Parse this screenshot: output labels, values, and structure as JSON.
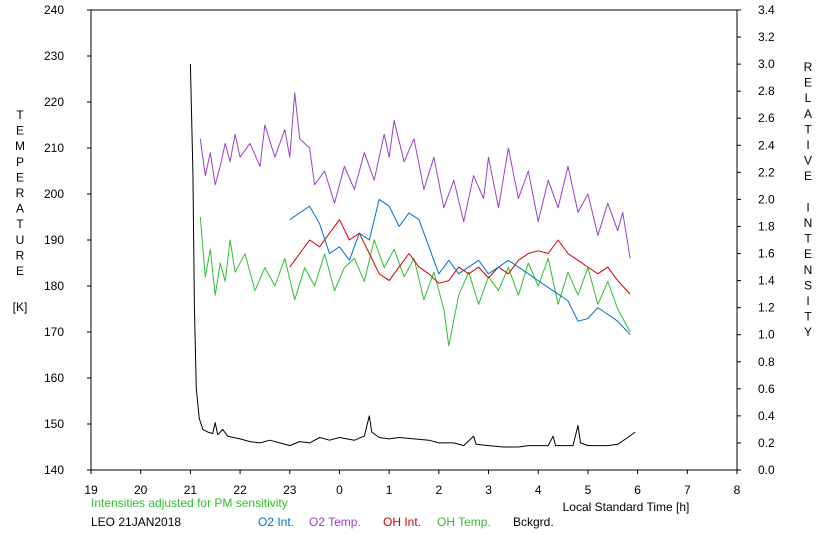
{
  "chart_data": {
    "type": "line",
    "x_range": [
      19,
      8
    ],
    "x_ticks": [
      "19",
      "20",
      "21",
      "22",
      "23",
      "0",
      "1",
      "2",
      "3",
      "4",
      "5",
      "6",
      "7",
      "8"
    ],
    "xlabel": "Local Standard Time [h]",
    "y_left": {
      "range": [
        140,
        240
      ],
      "ticks": [
        "140",
        "150",
        "160",
        "170",
        "180",
        "190",
        "200",
        "210",
        "220",
        "230",
        "240"
      ],
      "label_letters": [
        "T",
        "E",
        "M",
        "P",
        "E",
        "R",
        "A",
        "T",
        "U",
        "R",
        "E"
      ],
      "unit": "[K]"
    },
    "y_right": {
      "range": [
        0.0,
        3.4
      ],
      "ticks": [
        "0.0",
        "0.2",
        "0.4",
        "0.6",
        "0.8",
        "1.0",
        "1.2",
        "1.4",
        "1.6",
        "1.8",
        "2.0",
        "2.2",
        "2.4",
        "2.6",
        "2.8",
        "3.0",
        "3.2",
        "3.4"
      ],
      "label_letters": [
        "R",
        "E",
        "L",
        "A",
        "T",
        "I",
        "V",
        "E",
        "",
        "I",
        "N",
        "T",
        "E",
        "N",
        "S",
        "I",
        "T",
        "Y"
      ]
    },
    "note": "Intensities adjusted for PM sensitivity",
    "station_date": "LEO 21JAN2018",
    "grid": false,
    "series": [
      {
        "name": "O2 Int.",
        "color": "#0070d0",
        "axis": "right",
        "points": [
          [
            23.0,
            1.85
          ],
          [
            23.2,
            1.9
          ],
          [
            23.4,
            1.95
          ],
          [
            23.6,
            1.82
          ],
          [
            23.8,
            1.6
          ],
          [
            24.0,
            1.65
          ],
          [
            24.2,
            1.55
          ],
          [
            24.4,
            1.75
          ],
          [
            24.6,
            1.7
          ],
          [
            24.8,
            2.0
          ],
          [
            25.0,
            1.95
          ],
          [
            25.2,
            1.8
          ],
          [
            25.4,
            1.9
          ],
          [
            25.6,
            1.85
          ],
          [
            25.8,
            1.65
          ],
          [
            26.0,
            1.45
          ],
          [
            26.2,
            1.55
          ],
          [
            26.4,
            1.45
          ],
          [
            26.6,
            1.5
          ],
          [
            26.8,
            1.55
          ],
          [
            27.0,
            1.45
          ],
          [
            27.2,
            1.5
          ],
          [
            27.4,
            1.55
          ],
          [
            27.6,
            1.5
          ],
          [
            27.8,
            1.45
          ],
          [
            28.0,
            1.4
          ],
          [
            28.2,
            1.35
          ],
          [
            28.4,
            1.3
          ],
          [
            28.6,
            1.25
          ],
          [
            28.8,
            1.1
          ],
          [
            29.0,
            1.12
          ],
          [
            29.2,
            1.2
          ],
          [
            29.4,
            1.15
          ],
          [
            29.6,
            1.1
          ],
          [
            29.85,
            1.0
          ]
        ]
      },
      {
        "name": "O2 Temp.",
        "color": "#9a40c8",
        "axis": "left",
        "points": [
          [
            21.2,
            212
          ],
          [
            21.3,
            204
          ],
          [
            21.4,
            209
          ],
          [
            21.5,
            202
          ],
          [
            21.6,
            206
          ],
          [
            21.7,
            211
          ],
          [
            21.8,
            207
          ],
          [
            21.9,
            213
          ],
          [
            22.0,
            208
          ],
          [
            22.2,
            211
          ],
          [
            22.4,
            206
          ],
          [
            22.5,
            215
          ],
          [
            22.7,
            208
          ],
          [
            22.9,
            214
          ],
          [
            23.0,
            208
          ],
          [
            23.1,
            222
          ],
          [
            23.2,
            212
          ],
          [
            23.4,
            210
          ],
          [
            23.5,
            202
          ],
          [
            23.7,
            205
          ],
          [
            23.9,
            198
          ],
          [
            24.1,
            206
          ],
          [
            24.3,
            201
          ],
          [
            24.5,
            209
          ],
          [
            24.7,
            203
          ],
          [
            24.9,
            213
          ],
          [
            25.0,
            208
          ],
          [
            25.1,
            216
          ],
          [
            25.3,
            207
          ],
          [
            25.5,
            212
          ],
          [
            25.7,
            201
          ],
          [
            25.9,
            208
          ],
          [
            26.1,
            197
          ],
          [
            26.3,
            203
          ],
          [
            26.5,
            194
          ],
          [
            26.7,
            204
          ],
          [
            26.9,
            199
          ],
          [
            27.0,
            208
          ],
          [
            27.2,
            197
          ],
          [
            27.4,
            210
          ],
          [
            27.6,
            199
          ],
          [
            27.8,
            205
          ],
          [
            28.0,
            194
          ],
          [
            28.2,
            203
          ],
          [
            28.4,
            197
          ],
          [
            28.6,
            206
          ],
          [
            28.8,
            196
          ],
          [
            29.0,
            200
          ],
          [
            29.2,
            191
          ],
          [
            29.4,
            198
          ],
          [
            29.6,
            192
          ],
          [
            29.7,
            196
          ],
          [
            29.85,
            186
          ]
        ]
      },
      {
        "name": "OH Int.",
        "color": "#d40000",
        "axis": "right",
        "points": [
          [
            23.0,
            1.5
          ],
          [
            23.2,
            1.6
          ],
          [
            23.4,
            1.7
          ],
          [
            23.6,
            1.65
          ],
          [
            23.8,
            1.75
          ],
          [
            24.0,
            1.85
          ],
          [
            24.2,
            1.7
          ],
          [
            24.4,
            1.75
          ],
          [
            24.6,
            1.6
          ],
          [
            24.8,
            1.45
          ],
          [
            25.0,
            1.4
          ],
          [
            25.2,
            1.5
          ],
          [
            25.4,
            1.6
          ],
          [
            25.6,
            1.5
          ],
          [
            25.8,
            1.45
          ],
          [
            26.0,
            1.38
          ],
          [
            26.2,
            1.4
          ],
          [
            26.4,
            1.5
          ],
          [
            26.6,
            1.45
          ],
          [
            26.8,
            1.5
          ],
          [
            27.0,
            1.42
          ],
          [
            27.2,
            1.5
          ],
          [
            27.4,
            1.45
          ],
          [
            27.6,
            1.55
          ],
          [
            27.8,
            1.6
          ],
          [
            28.0,
            1.62
          ],
          [
            28.2,
            1.6
          ],
          [
            28.4,
            1.7
          ],
          [
            28.6,
            1.6
          ],
          [
            28.8,
            1.55
          ],
          [
            29.0,
            1.5
          ],
          [
            29.2,
            1.45
          ],
          [
            29.4,
            1.5
          ],
          [
            29.6,
            1.4
          ],
          [
            29.85,
            1.3
          ]
        ]
      },
      {
        "name": "OH Temp.",
        "color": "#2cc02c",
        "axis": "left",
        "points": [
          [
            21.2,
            195
          ],
          [
            21.3,
            182
          ],
          [
            21.4,
            188
          ],
          [
            21.5,
            178
          ],
          [
            21.6,
            185
          ],
          [
            21.7,
            181
          ],
          [
            21.8,
            190
          ],
          [
            21.9,
            183
          ],
          [
            22.1,
            187
          ],
          [
            22.3,
            179
          ],
          [
            22.5,
            184
          ],
          [
            22.7,
            180
          ],
          [
            22.9,
            186
          ],
          [
            23.1,
            177
          ],
          [
            23.3,
            184
          ],
          [
            23.5,
            180
          ],
          [
            23.7,
            187
          ],
          [
            23.9,
            179
          ],
          [
            24.1,
            184
          ],
          [
            24.3,
            186
          ],
          [
            24.5,
            181
          ],
          [
            24.7,
            190
          ],
          [
            24.9,
            184
          ],
          [
            25.1,
            188
          ],
          [
            25.3,
            182
          ],
          [
            25.5,
            186
          ],
          [
            25.7,
            177
          ],
          [
            25.9,
            183
          ],
          [
            26.1,
            175
          ],
          [
            26.2,
            167
          ],
          [
            26.4,
            178
          ],
          [
            26.6,
            183
          ],
          [
            26.8,
            176
          ],
          [
            27.0,
            182
          ],
          [
            27.2,
            179
          ],
          [
            27.4,
            184
          ],
          [
            27.6,
            178
          ],
          [
            27.8,
            185
          ],
          [
            28.0,
            180
          ],
          [
            28.2,
            186
          ],
          [
            28.4,
            176
          ],
          [
            28.6,
            183
          ],
          [
            28.8,
            178
          ],
          [
            29.0,
            184
          ],
          [
            29.2,
            176
          ],
          [
            29.4,
            181
          ],
          [
            29.6,
            175
          ],
          [
            29.85,
            170
          ]
        ]
      },
      {
        "name": "Bckgrd.",
        "color": "#000000",
        "axis": "right",
        "points": [
          [
            21.0,
            3.0
          ],
          [
            21.05,
            2.2
          ],
          [
            21.08,
            1.2
          ],
          [
            21.12,
            0.6
          ],
          [
            21.18,
            0.38
          ],
          [
            21.25,
            0.3
          ],
          [
            21.35,
            0.28
          ],
          [
            21.45,
            0.27
          ],
          [
            21.5,
            0.35
          ],
          [
            21.55,
            0.26
          ],
          [
            21.65,
            0.3
          ],
          [
            21.75,
            0.25
          ],
          [
            22.0,
            0.23
          ],
          [
            22.2,
            0.21
          ],
          [
            22.4,
            0.2
          ],
          [
            22.6,
            0.22
          ],
          [
            22.8,
            0.2
          ],
          [
            23.0,
            0.18
          ],
          [
            23.2,
            0.21
          ],
          [
            23.4,
            0.2
          ],
          [
            23.6,
            0.24
          ],
          [
            23.8,
            0.22
          ],
          [
            24.0,
            0.24
          ],
          [
            24.3,
            0.22
          ],
          [
            24.5,
            0.25
          ],
          [
            24.6,
            0.4
          ],
          [
            24.65,
            0.28
          ],
          [
            24.8,
            0.24
          ],
          [
            25.0,
            0.23
          ],
          [
            25.2,
            0.24
          ],
          [
            25.5,
            0.23
          ],
          [
            25.8,
            0.22
          ],
          [
            26.0,
            0.2
          ],
          [
            26.3,
            0.2
          ],
          [
            26.5,
            0.18
          ],
          [
            26.7,
            0.25
          ],
          [
            26.75,
            0.19
          ],
          [
            27.0,
            0.18
          ],
          [
            27.3,
            0.17
          ],
          [
            27.6,
            0.17
          ],
          [
            27.8,
            0.18
          ],
          [
            28.0,
            0.18
          ],
          [
            28.2,
            0.18
          ],
          [
            28.3,
            0.25
          ],
          [
            28.35,
            0.18
          ],
          [
            28.5,
            0.18
          ],
          [
            28.7,
            0.18
          ],
          [
            28.8,
            0.33
          ],
          [
            28.85,
            0.2
          ],
          [
            29.0,
            0.18
          ],
          [
            29.2,
            0.18
          ],
          [
            29.4,
            0.18
          ],
          [
            29.6,
            0.19
          ],
          [
            29.8,
            0.24
          ],
          [
            29.95,
            0.28
          ]
        ]
      }
    ]
  }
}
